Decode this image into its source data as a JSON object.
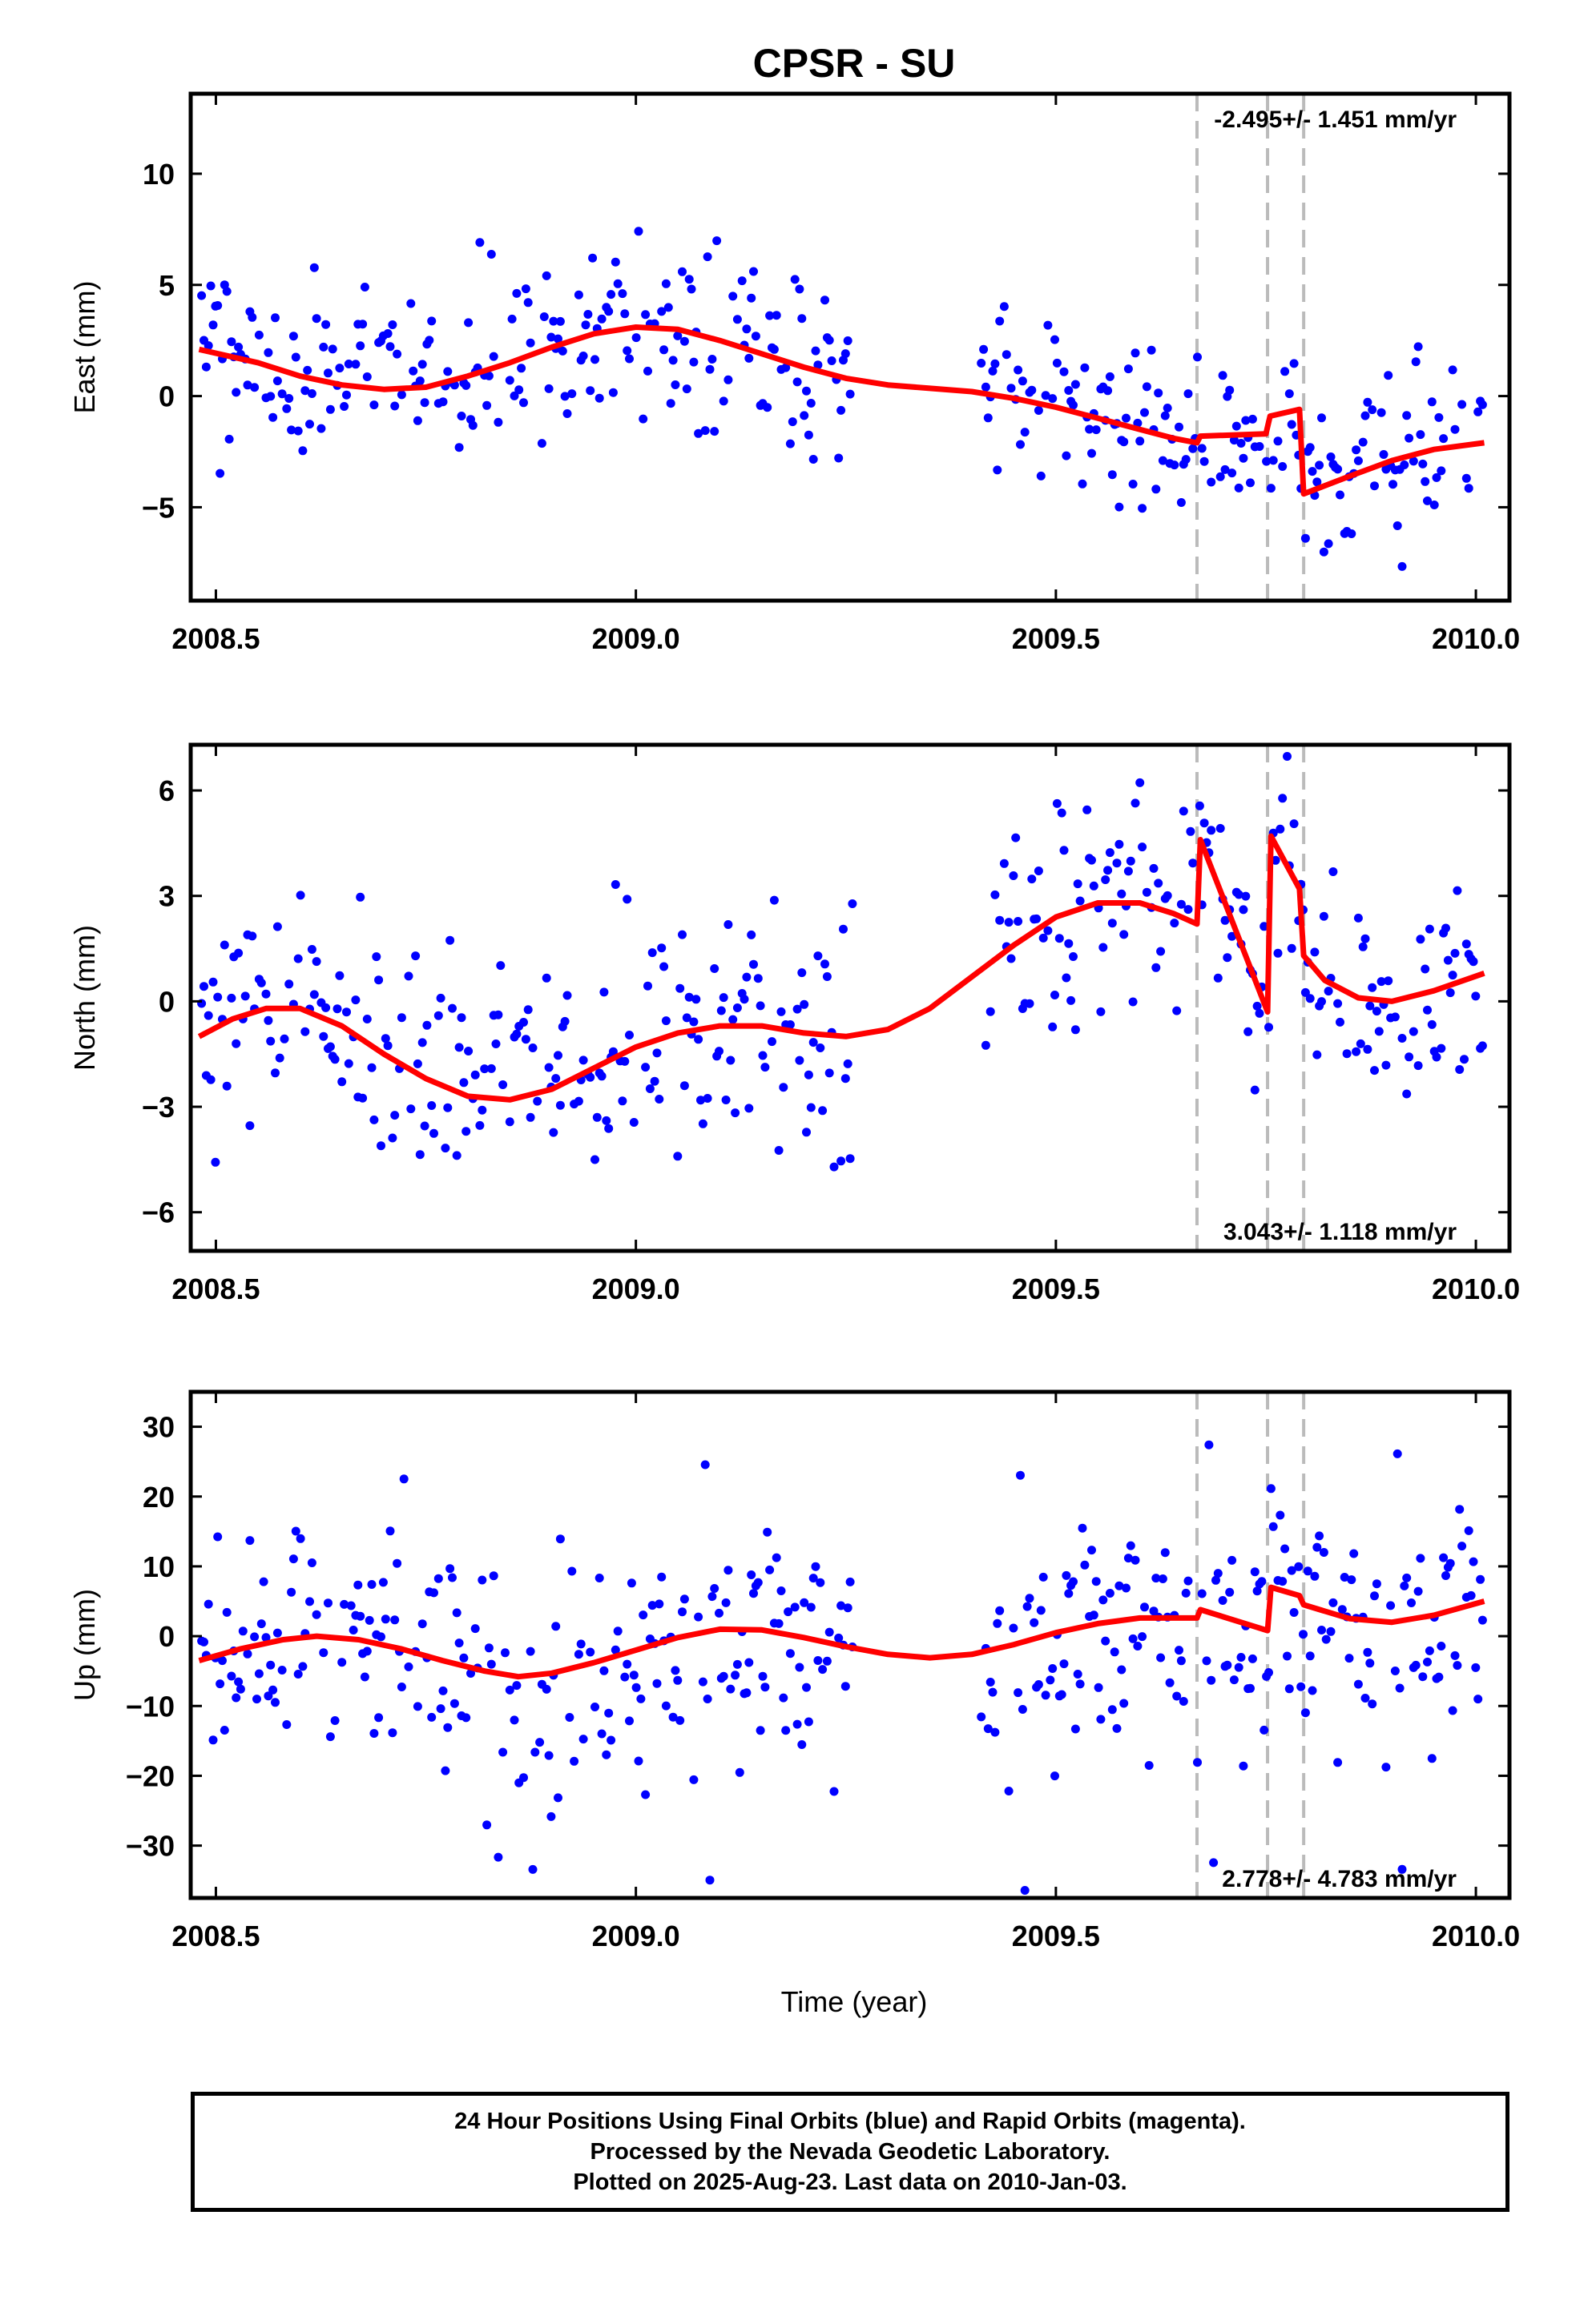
{
  "chart_data": {
    "title": "CPSR - SU",
    "xlabel": "Time (year)",
    "xlim": [
      2008.47,
      2010.04
    ],
    "xticks": [
      2008.5,
      2009.0,
      2009.5,
      2010.0
    ],
    "xtick_labels": [
      "2008.5",
      "2009.0",
      "2009.5",
      "2010.0"
    ],
    "marker_colors": {
      "final": "#0000ff",
      "model": "#ff0000",
      "steps": "#bbbbbb"
    },
    "step_epochs": [
      2009.668,
      2009.752,
      2009.795
    ],
    "data_gap": [
      2009.26,
      2009.41
    ],
    "panels": [
      {
        "id": "east",
        "type": "scatter",
        "ylabel": "East (mm)",
        "ylim": [
          -9.2,
          13.6
        ],
        "yticks": [
          -5,
          0,
          5,
          10
        ],
        "ytick_labels": [
          "−5",
          "0",
          "5",
          "10"
        ],
        "rate_label": "-2.495+/- 1.451 mm/yr",
        "rate_position": "top-right",
        "scatter_sd": 1.9,
        "model": [
          [
            2008.48,
            2.1
          ],
          [
            2008.55,
            1.5
          ],
          [
            2008.6,
            0.9
          ],
          [
            2008.65,
            0.5
          ],
          [
            2008.7,
            0.3
          ],
          [
            2008.75,
            0.4
          ],
          [
            2008.8,
            0.9
          ],
          [
            2008.85,
            1.5
          ],
          [
            2008.9,
            2.2
          ],
          [
            2008.95,
            2.8
          ],
          [
            2009.0,
            3.1
          ],
          [
            2009.05,
            3.0
          ],
          [
            2009.1,
            2.5
          ],
          [
            2009.15,
            1.9
          ],
          [
            2009.2,
            1.3
          ],
          [
            2009.25,
            0.8
          ],
          [
            2009.3,
            0.5
          ],
          [
            2009.35,
            0.35
          ],
          [
            2009.4,
            0.2
          ],
          [
            2009.45,
            -0.1
          ],
          [
            2009.5,
            -0.5
          ],
          [
            2009.55,
            -1.0
          ],
          [
            2009.6,
            -1.5
          ],
          [
            2009.64,
            -1.9
          ],
          [
            2009.668,
            -2.1
          ],
          [
            2009.672,
            -1.8
          ],
          [
            2009.75,
            -1.7
          ],
          [
            2009.755,
            -0.9
          ],
          [
            2009.79,
            -0.6
          ],
          [
            2009.795,
            -4.4
          ],
          [
            2009.85,
            -3.6
          ],
          [
            2009.9,
            -2.9
          ],
          [
            2009.95,
            -2.4
          ],
          [
            2010.01,
            -2.1
          ]
        ]
      },
      {
        "id": "north",
        "type": "scatter",
        "ylabel": "North (mm)",
        "ylim": [
          -7.1,
          7.3
        ],
        "yticks": [
          -6,
          -3,
          0,
          3,
          6
        ],
        "ytick_labels": [
          "−6",
          "−3",
          "0",
          "3",
          "6"
        ],
        "rate_label": "3.043+/- 1.118 mm/yr",
        "rate_position": "bottom-right",
        "scatter_sd": 1.6,
        "model": [
          [
            2008.48,
            -1.0
          ],
          [
            2008.52,
            -0.5
          ],
          [
            2008.56,
            -0.2
          ],
          [
            2008.6,
            -0.2
          ],
          [
            2008.65,
            -0.7
          ],
          [
            2008.7,
            -1.5
          ],
          [
            2008.75,
            -2.2
          ],
          [
            2008.8,
            -2.7
          ],
          [
            2008.85,
            -2.8
          ],
          [
            2008.9,
            -2.5
          ],
          [
            2008.95,
            -1.9
          ],
          [
            2009.0,
            -1.3
          ],
          [
            2009.05,
            -0.9
          ],
          [
            2009.1,
            -0.7
          ],
          [
            2009.15,
            -0.7
          ],
          [
            2009.2,
            -0.9
          ],
          [
            2009.25,
            -1.0
          ],
          [
            2009.3,
            -0.8
          ],
          [
            2009.35,
            -0.2
          ],
          [
            2009.4,
            0.7
          ],
          [
            2009.45,
            1.6
          ],
          [
            2009.5,
            2.4
          ],
          [
            2009.55,
            2.8
          ],
          [
            2009.6,
            2.8
          ],
          [
            2009.64,
            2.5
          ],
          [
            2009.668,
            2.2
          ],
          [
            2009.672,
            4.6
          ],
          [
            2009.752,
            -0.3
          ],
          [
            2009.756,
            4.7
          ],
          [
            2009.79,
            3.2
          ],
          [
            2009.795,
            1.3
          ],
          [
            2009.82,
            0.6
          ],
          [
            2009.86,
            0.1
          ],
          [
            2009.9,
            0.0
          ],
          [
            2009.95,
            0.3
          ],
          [
            2010.01,
            0.8
          ]
        ]
      },
      {
        "id": "up",
        "type": "scatter",
        "ylabel": "Up (mm)",
        "ylim": [
          -37.5,
          35
        ],
        "yticks": [
          -30,
          -20,
          -10,
          0,
          10,
          20,
          30
        ],
        "ytick_labels": [
          "−30",
          "−20",
          "−10",
          "0",
          "10",
          "20",
          "30"
        ],
        "rate_label": "2.778+/- 4.783 mm/yr",
        "rate_position": "bottom-right",
        "scatter_sd": 9.0,
        "model": [
          [
            2008.48,
            -3.5
          ],
          [
            2008.53,
            -1.8
          ],
          [
            2008.58,
            -0.5
          ],
          [
            2008.62,
            0.0
          ],
          [
            2008.67,
            -0.5
          ],
          [
            2008.72,
            -1.8
          ],
          [
            2008.77,
            -3.5
          ],
          [
            2008.82,
            -5.0
          ],
          [
            2008.86,
            -5.8
          ],
          [
            2008.9,
            -5.3
          ],
          [
            2008.95,
            -3.8
          ],
          [
            2009.0,
            -2.0
          ],
          [
            2009.05,
            -0.2
          ],
          [
            2009.1,
            1.0
          ],
          [
            2009.15,
            0.9
          ],
          [
            2009.2,
            -0.2
          ],
          [
            2009.25,
            -1.5
          ],
          [
            2009.3,
            -2.6
          ],
          [
            2009.35,
            -3.1
          ],
          [
            2009.4,
            -2.6
          ],
          [
            2009.45,
            -1.2
          ],
          [
            2009.5,
            0.5
          ],
          [
            2009.55,
            1.8
          ],
          [
            2009.6,
            2.6
          ],
          [
            2009.668,
            2.6
          ],
          [
            2009.672,
            3.8
          ],
          [
            2009.752,
            0.8
          ],
          [
            2009.756,
            7.0
          ],
          [
            2009.79,
            5.8
          ],
          [
            2009.795,
            4.5
          ],
          [
            2009.85,
            2.5
          ],
          [
            2009.9,
            2.0
          ],
          [
            2009.95,
            3.0
          ],
          [
            2010.01,
            5.0
          ]
        ]
      }
    ]
  },
  "footer": {
    "line1": "24 Hour Positions Using Final Orbits (blue) and Rapid Orbits (magenta).",
    "line2": "Processed by the Nevada Geodetic Laboratory.",
    "line3": "Plotted on 2025-Aug-23. Last data on 2010-Jan-03."
  }
}
